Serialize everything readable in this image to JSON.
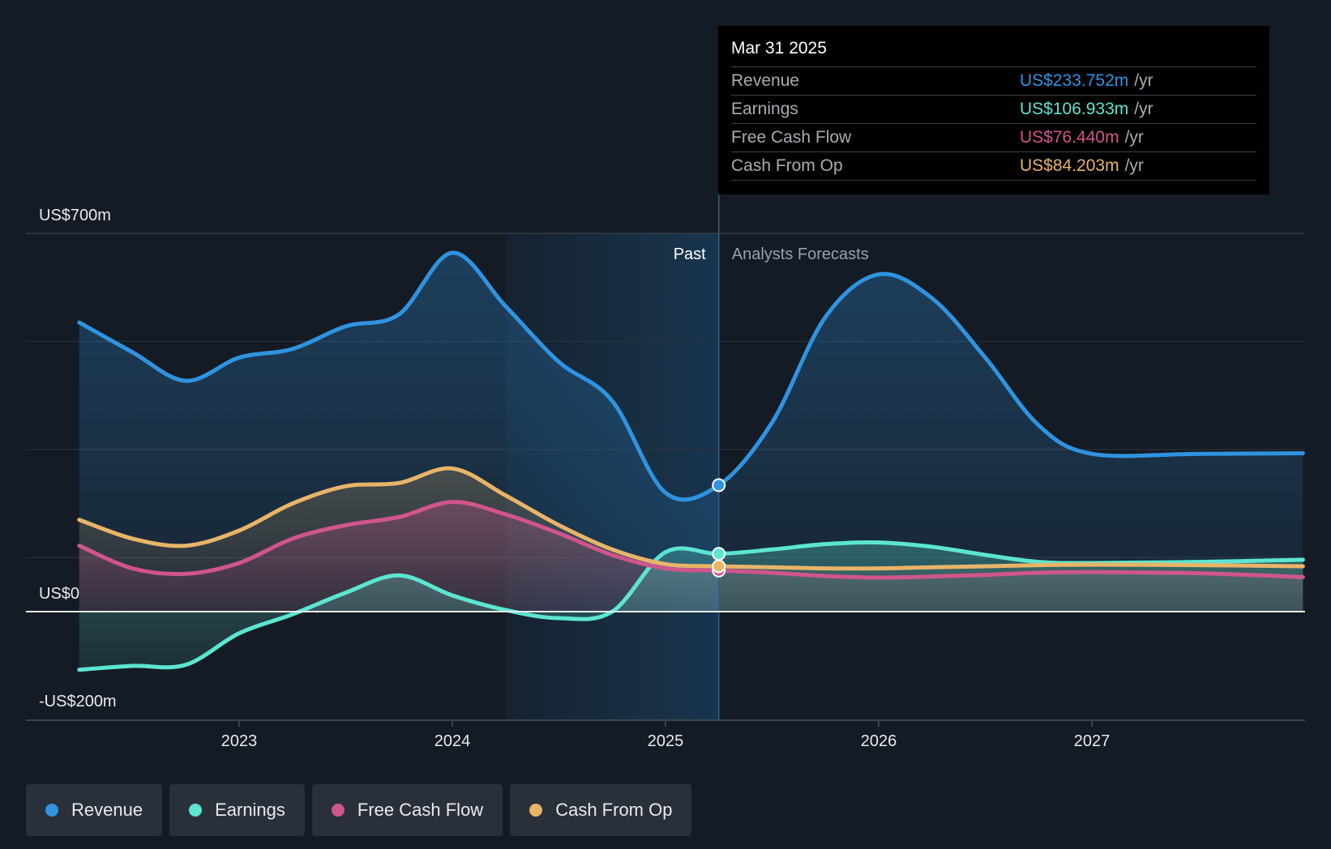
{
  "chart_data": {
    "type": "area",
    "title": "",
    "y_axis": {
      "top_label": "US$700m",
      "zero_label": "US$0",
      "bottom_label": "-US$200m",
      "ylim": [
        -200,
        700
      ]
    },
    "x_ticks": [
      "2023",
      "2024",
      "2025",
      "2026",
      "2027"
    ],
    "x_tick_values": [
      2023,
      2024,
      2025,
      2026,
      2027
    ],
    "xlim": [
      2022.0,
      2028.0
    ],
    "past_label": "Past",
    "forecast_label": "Analysts Forecasts",
    "past_end": 2025.25,
    "series": [
      {
        "name": "Revenue",
        "color": "#2f93e0",
        "points": [
          [
            2022.25,
            535
          ],
          [
            2022.5,
            480
          ],
          [
            2022.75,
            427
          ],
          [
            2023.0,
            470
          ],
          [
            2023.25,
            486
          ],
          [
            2023.5,
            528
          ],
          [
            2023.75,
            550
          ],
          [
            2024.0,
            664
          ],
          [
            2024.25,
            565
          ],
          [
            2024.5,
            462
          ],
          [
            2024.75,
            390
          ],
          [
            2025.0,
            220
          ],
          [
            2025.25,
            234
          ],
          [
            2025.5,
            350
          ],
          [
            2025.75,
            545
          ],
          [
            2026.0,
            624
          ],
          [
            2026.25,
            580
          ],
          [
            2026.5,
            470
          ],
          [
            2026.75,
            345
          ],
          [
            2027.0,
            292
          ],
          [
            2027.5,
            292
          ],
          [
            2027.99,
            293
          ]
        ]
      },
      {
        "name": "Earnings",
        "color": "#5ce5d2",
        "points": [
          [
            2022.25,
            -107
          ],
          [
            2022.5,
            -100
          ],
          [
            2022.75,
            -98
          ],
          [
            2023.0,
            -40
          ],
          [
            2023.25,
            -5
          ],
          [
            2023.5,
            35
          ],
          [
            2023.75,
            67
          ],
          [
            2024.0,
            30
          ],
          [
            2024.25,
            3
          ],
          [
            2024.5,
            -12
          ],
          [
            2024.75,
            0
          ],
          [
            2025.0,
            110
          ],
          [
            2025.25,
            107
          ],
          [
            2025.5,
            115
          ],
          [
            2025.75,
            125
          ],
          [
            2026.0,
            128
          ],
          [
            2026.25,
            120
          ],
          [
            2026.5,
            105
          ],
          [
            2026.75,
            92
          ],
          [
            2027.0,
            90
          ],
          [
            2027.5,
            92
          ],
          [
            2027.99,
            96
          ]
        ]
      },
      {
        "name": "Free Cash Flow",
        "color": "#d0558d",
        "points": [
          [
            2022.25,
            122
          ],
          [
            2022.5,
            80
          ],
          [
            2022.75,
            70
          ],
          [
            2023.0,
            90
          ],
          [
            2023.25,
            135
          ],
          [
            2023.5,
            160
          ],
          [
            2023.75,
            175
          ],
          [
            2024.0,
            203
          ],
          [
            2024.25,
            180
          ],
          [
            2024.5,
            145
          ],
          [
            2024.75,
            105
          ],
          [
            2025.0,
            80
          ],
          [
            2025.25,
            76
          ],
          [
            2025.5,
            72
          ],
          [
            2025.75,
            66
          ],
          [
            2026.0,
            63
          ],
          [
            2026.25,
            65
          ],
          [
            2026.5,
            68
          ],
          [
            2026.75,
            72
          ],
          [
            2027.0,
            73
          ],
          [
            2027.5,
            71
          ],
          [
            2027.99,
            64
          ]
        ]
      },
      {
        "name": "Cash From Op",
        "color": "#e8b468",
        "points": [
          [
            2022.25,
            170
          ],
          [
            2022.5,
            135
          ],
          [
            2022.75,
            122
          ],
          [
            2023.0,
            150
          ],
          [
            2023.25,
            200
          ],
          [
            2023.5,
            232
          ],
          [
            2023.75,
            238
          ],
          [
            2024.0,
            265
          ],
          [
            2024.25,
            215
          ],
          [
            2024.5,
            160
          ],
          [
            2024.75,
            115
          ],
          [
            2025.0,
            88
          ],
          [
            2025.25,
            84
          ],
          [
            2025.5,
            82
          ],
          [
            2025.75,
            80
          ],
          [
            2026.0,
            80
          ],
          [
            2026.25,
            82
          ],
          [
            2026.5,
            84
          ],
          [
            2026.75,
            86
          ],
          [
            2027.0,
            87
          ],
          [
            2027.5,
            86
          ],
          [
            2027.99,
            84
          ]
        ]
      }
    ]
  },
  "tooltip": {
    "date": "Mar 31 2025",
    "unit": "/yr",
    "rows": [
      {
        "label": "Revenue",
        "value": "US$233.752m",
        "color": "#2f93e0"
      },
      {
        "label": "Earnings",
        "value": "US$106.933m",
        "color": "#5ce5d2"
      },
      {
        "label": "Free Cash Flow",
        "value": "US$76.440m",
        "color": "#d0558d"
      },
      {
        "label": "Cash From Op",
        "value": "US$84.203m",
        "color": "#e8b468"
      }
    ]
  },
  "legend": [
    {
      "label": "Revenue",
      "color": "#2f93e0"
    },
    {
      "label": "Earnings",
      "color": "#5ce5d2"
    },
    {
      "label": "Free Cash Flow",
      "color": "#d0558d"
    },
    {
      "label": "Cash From Op",
      "color": "#e8b468"
    }
  ]
}
